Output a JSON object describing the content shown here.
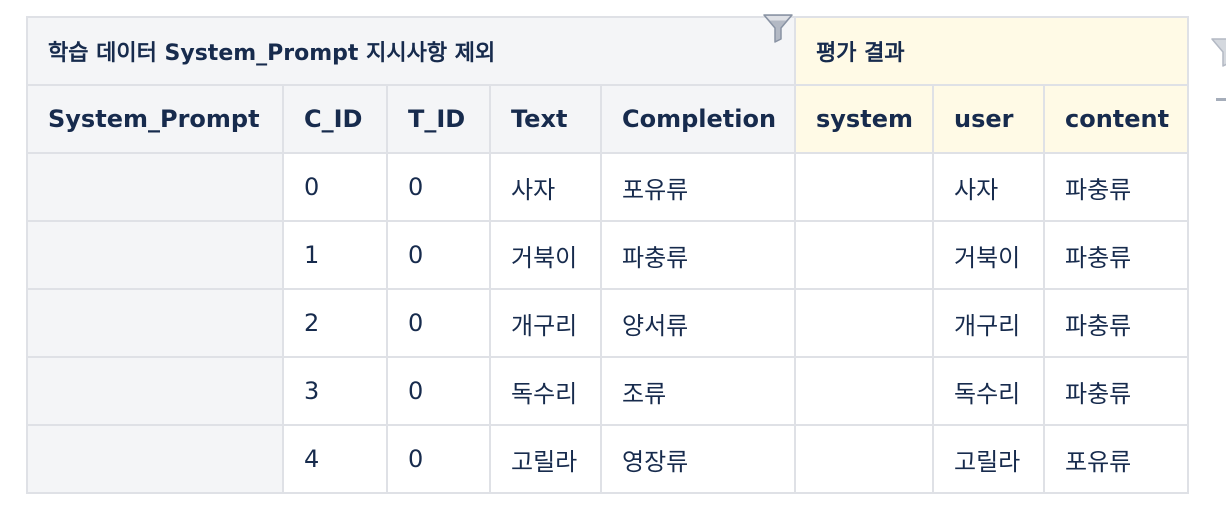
{
  "table": {
    "groups": {
      "train": "학습 데이터 System_Prompt 지시사항 제외",
      "eval": "평가 결과"
    },
    "columns": [
      "System_Prompt",
      "C_ID",
      "T_ID",
      "Text",
      "Completion",
      "system",
      "user",
      "content"
    ],
    "rows": [
      {
        "system_prompt": "",
        "c_id": "0",
        "t_id": "0",
        "text": "사자",
        "completion": "포유류",
        "system": "",
        "user": "사자",
        "content": "파충류"
      },
      {
        "system_prompt": "",
        "c_id": "1",
        "t_id": "0",
        "text": "거북이",
        "completion": "파충류",
        "system": "",
        "user": "거북이",
        "content": "파충류"
      },
      {
        "system_prompt": "",
        "c_id": "2",
        "t_id": "0",
        "text": "개구리",
        "completion": "양서류",
        "system": "",
        "user": "개구리",
        "content": "파충류"
      },
      {
        "system_prompt": "",
        "c_id": "3",
        "t_id": "0",
        "text": "독수리",
        "completion": "조류",
        "system": "",
        "user": "독수리",
        "content": "파충류"
      },
      {
        "system_prompt": "",
        "c_id": "4",
        "t_id": "0",
        "text": "고릴라",
        "completion": "영장류",
        "system": "",
        "user": "고릴라",
        "content": "포유류"
      }
    ]
  },
  "icons": {
    "filter_main": "filter-icon",
    "filter_right": "filter-icon"
  },
  "colors": {
    "train_header_bg": "#f4f5f7",
    "eval_header_bg": "#fffae6",
    "border": "#dfe1e6",
    "text": "#172b4d"
  }
}
